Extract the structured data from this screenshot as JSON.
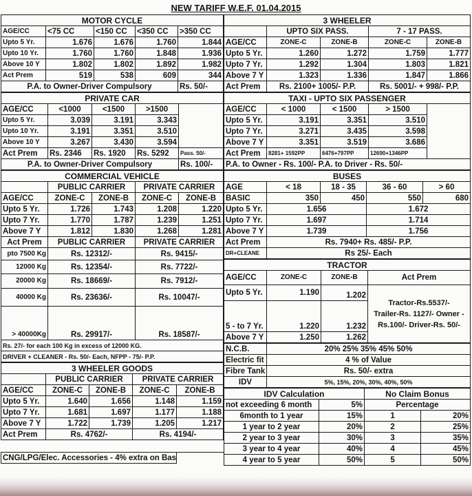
{
  "title": "NEW TARIFF W.E.F. 01.04.2015",
  "mc": {
    "heading": "MOTOR CYCLE",
    "head": [
      "AGE/CC",
      "<75 CC",
      "<150 CC",
      "<350 CC",
      ">350 CC"
    ],
    "rows": [
      [
        "Upto 5 Yr.",
        "1.676",
        "1.676",
        "1.760",
        "1.844"
      ],
      [
        "Upto 10 Yr.",
        "1.760",
        "1.760",
        "1.848",
        "1.936"
      ],
      [
        "Above 10 Y",
        "1.802",
        "1.802",
        "1.892",
        "1.982"
      ],
      [
        "Act Prem",
        "519",
        "538",
        "609",
        "344"
      ]
    ],
    "pa": "P.A. to Owner-Driver Compulsory",
    "pa_val": "Rs. 50/-"
  },
  "pc": {
    "heading": "PRIVATE CAR",
    "head": [
      "AGE/CC",
      "<1000",
      "<1500",
      ">1500"
    ],
    "rows": [
      [
        "Upto 5 Yr.",
        "3.039",
        "3.191",
        "3.343"
      ],
      [
        "Upto 10 Yr.",
        "3.191",
        "3.351",
        "3.510"
      ],
      [
        "Above 10 Y",
        "3.267",
        "3.430",
        "3.594"
      ]
    ],
    "act": [
      "Act Prem",
      "Rs. 2346",
      "Rs. 1920",
      "Rs. 5292",
      "Pass. 50/-"
    ],
    "pa": "P.A. to Owner-Driver Compulsory",
    "pa_val": "Rs. 100/-"
  },
  "cv": {
    "heading": "COMMERCIAL VEHICLE",
    "groups": [
      "PUBLIC CARRIER",
      "PRIVATE CARRIER"
    ],
    "head": [
      "AGE/CC",
      "ZONE-C",
      "ZONE-B",
      "ZONE-C",
      "ZONE-B"
    ],
    "rows": [
      [
        "Upto 5 Yr.",
        "1.726",
        "1.743",
        "1.208",
        "1.220"
      ],
      [
        "Upto 7 Yr.",
        "1.770",
        "1.787",
        "1.239",
        "1.251"
      ],
      [
        "Above 7 Y",
        "1.812",
        "1.830",
        "1.268",
        "1.281"
      ]
    ],
    "act_head": [
      "Act Prem",
      "PUBLIC CARRIER",
      "PRIVATE CARRIER"
    ],
    "weights": [
      [
        "pto 7500 Kg",
        "Rs. 12312/-",
        "Rs. 9415/-"
      ],
      [
        "12000 Kg",
        "Rs. 12354/-",
        "Rs. 7722/-"
      ],
      [
        "20000 Kg",
        "Rs. 18669/-",
        "Rs. 7912/-"
      ],
      [
        "40000 Kg",
        "Rs. 23636/-",
        "Rs. 10047/-"
      ],
      [
        "> 40000Kg",
        "Rs. 29917/-",
        "Rs. 18587/-"
      ]
    ],
    "note1": "Rs. 27/- for each 100 Kg in excess of 12000 KG.",
    "note2": "DRIVER + CLEANER - Rs. 50/- Each, NFPP - 75/- P.P."
  },
  "wg": {
    "heading": "3 WHEELER GOODS",
    "groups": [
      "PUBLIC CARRIER",
      "PRIVATE CARRIER"
    ],
    "head": [
      "AGE/CC",
      "ZONE-C",
      "ZONE-B",
      "ZONE-C",
      "ZONE-B"
    ],
    "rows": [
      [
        "Upto 5 Yr.",
        "1.640",
        "1.656",
        "1.148",
        "1.159"
      ],
      [
        "Upto 7 Yr.",
        "1.681",
        "1.697",
        "1.177",
        "1.188"
      ],
      [
        "Above 7 Y",
        "1.722",
        "1.739",
        "1.205",
        "1.217"
      ]
    ],
    "act": [
      "Act Prem",
      "Rs. 4762/-",
      "Rs. 4194/-"
    ]
  },
  "cng": "CNG/LPG/Elec. Accessories - 4% extra on Basic",
  "tw": {
    "heading": "3 WHEELER",
    "groups": [
      "UPTO SIX PASS.",
      "7 - 17 PASS."
    ],
    "head": [
      "AGE/CC",
      "ZONE-C",
      "ZONE-B",
      "ZONE-C",
      "ZONE-B"
    ],
    "rows": [
      [
        "Upto 5 Yr.",
        "1.260",
        "1.272",
        "1.759",
        "1.777"
      ],
      [
        "Upto 7 Yr.",
        "1.292",
        "1.304",
        "1.803",
        "1.821"
      ],
      [
        "Above 7 Y",
        "1.323",
        "1.336",
        "1.847",
        "1.866"
      ]
    ],
    "act": [
      "Act Prem",
      "Rs. 2100+ 1005/- P.P.",
      "Rs. 5001/- + 998/- P.P."
    ]
  },
  "taxi": {
    "heading": "TAXI - UPTO SIX PASSENGER",
    "head": [
      "AGE/CC",
      "< 1000",
      "< 1500",
      "> 1500"
    ],
    "rows": [
      [
        "Upto 5 Yr.",
        "3.191",
        "3.351",
        "3.510"
      ],
      [
        "Upto 7 Yr.",
        "3.271",
        "3.435",
        "3.598"
      ],
      [
        "Above 7 Y",
        "3.351",
        "3.519",
        "3.686"
      ]
    ],
    "act": [
      "Act Prem",
      "8281+ 1592PP",
      "6476+797PP",
      "12690+1346PP"
    ],
    "pa": "P.A. to Owner - Rs. 100/- P.A. to Driver - Rs. 50/-"
  },
  "bus": {
    "heading": "BUSES",
    "head": [
      "AGE",
      "< 18",
      "18 - 35",
      "36 - 60",
      "> 60"
    ],
    "basic": [
      "BASIC",
      "350",
      "450",
      "550",
      "680"
    ],
    "rows": [
      [
        "Upto 5 Yr.",
        "1.656",
        "1.672"
      ],
      [
        "Upto 7 Yr.",
        "1.697",
        "1.714"
      ],
      [
        "Above 7 Y",
        "1.739",
        "1.756"
      ]
    ],
    "act": [
      "Act Prem",
      "Rs. 7940+ Rs. 485/- P.P."
    ],
    "dr": [
      "DR+CLEANE",
      "Rs 25/- Each"
    ]
  },
  "tr": {
    "heading": "TRACTOR",
    "head": [
      "AGE/CC",
      "ZONE-C",
      "ZONE-B",
      "Act Prem"
    ],
    "rows": [
      [
        "Upto 5 Yr.",
        "1.190",
        "1.202"
      ],
      [
        "5 - to 7 Yr.",
        "1.220",
        "1.232"
      ],
      [
        "Above 7 Y",
        "1.250",
        "1.262"
      ]
    ],
    "act_lines": [
      "Tractor-Rs.5537/-",
      "Trailer-Rs. 1127/- Owner -",
      "Rs.100/- Driver-Rs. 50/-"
    ]
  },
  "misc": [
    [
      "N.C.B.",
      "20%  25%  35%  45%  50%"
    ],
    [
      "Electric fit",
      "4 % of Value"
    ],
    [
      "Fibre Tank",
      "Rs. 50/- extra"
    ],
    [
      "IDV",
      "5%, 15%, 20%, 30%, 40%, 50%"
    ]
  ],
  "idv": {
    "heading": "IDV Calculation",
    "rows": [
      [
        "not exceeding 6 month",
        "5%"
      ],
      [
        "6month to 1 year",
        "15%"
      ],
      [
        "1 year to 2 year",
        "20%"
      ],
      [
        "2 year to 3 year",
        "30%"
      ],
      [
        "3 year to 4 year",
        "40%"
      ],
      [
        "4 year to 5 year",
        "50%"
      ]
    ]
  },
  "ncb": {
    "heading": "No Claim Bonus",
    "sub": "Percentage",
    "rows": [
      [
        "1",
        "20%"
      ],
      [
        "2",
        "25%"
      ],
      [
        "3",
        "35%"
      ],
      [
        "4",
        "45%"
      ],
      [
        "5",
        "50%"
      ]
    ]
  }
}
